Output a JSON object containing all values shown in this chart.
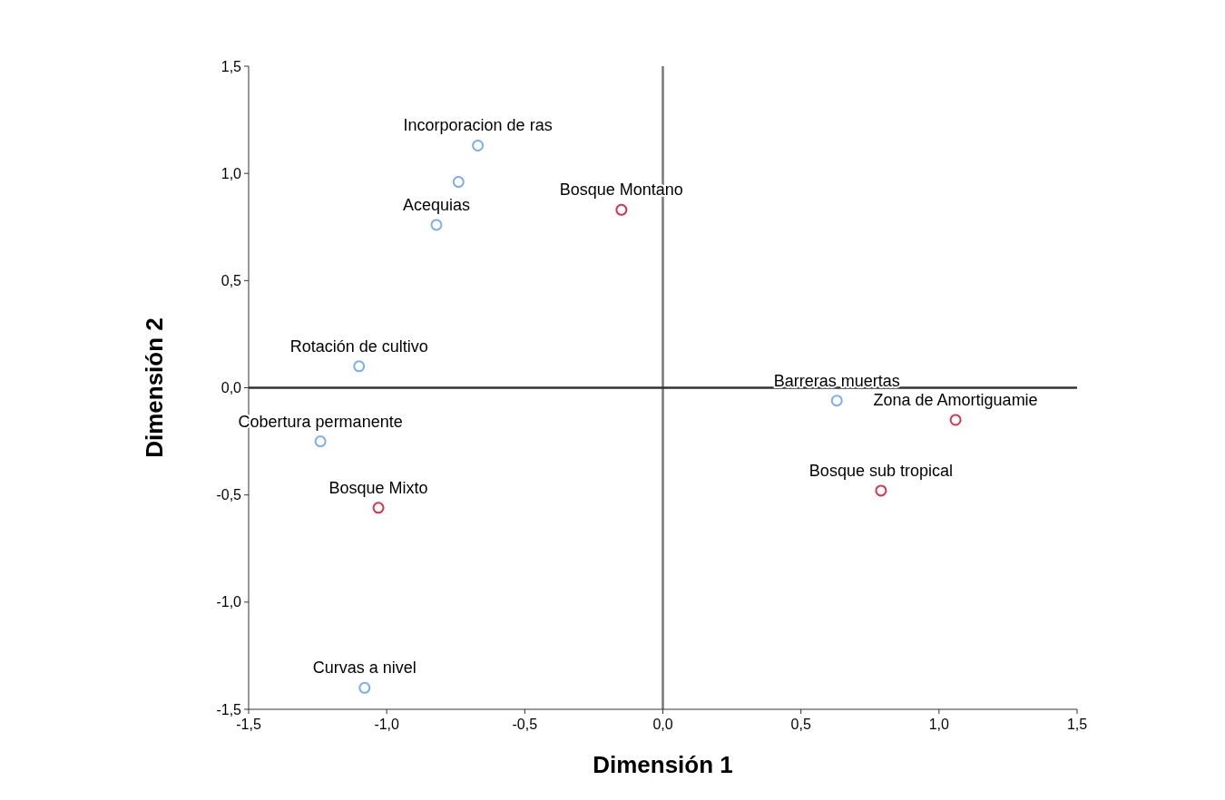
{
  "chart_data": {
    "type": "scatter",
    "xlabel": "Dimensión 1",
    "ylabel": "Dimensión 2",
    "xlim": [
      -1.5,
      1.5
    ],
    "ylim": [
      -1.5,
      1.5
    ],
    "xticks": [
      {
        "value": -1.5,
        "label": "-1,5"
      },
      {
        "value": -1,
        "label": "-1,0"
      },
      {
        "value": -0.5,
        "label": "-0,5"
      },
      {
        "value": 0,
        "label": "0,0"
      },
      {
        "value": 0.5,
        "label": "0,5"
      },
      {
        "value": 1,
        "label": "1,0"
      },
      {
        "value": 1.5,
        "label": "1,5"
      }
    ],
    "yticks": [
      {
        "value": -1.5,
        "label": "-1,5"
      },
      {
        "value": -1,
        "label": "-1,0"
      },
      {
        "value": -0.5,
        "label": "-0,5"
      },
      {
        "value": 0,
        "label": "0,0"
      },
      {
        "value": 0.5,
        "label": "0,5"
      },
      {
        "value": 1,
        "label": "1,0"
      },
      {
        "value": 1.5,
        "label": "1,5"
      }
    ],
    "series": [
      {
        "color": "#7aaef0",
        "x": [
          -0.67,
          -0.74,
          -0.82,
          -1.1,
          -1.24,
          -1.08,
          0.63
        ],
        "values": [
          1.13,
          0.96,
          0.76,
          0.1,
          -0.25,
          -1.4,
          -0.06
        ]
      },
      {
        "color": "#e0304a",
        "x": [
          -0.15,
          -1.03,
          1.06,
          0.79
        ],
        "values": [
          0.83,
          -0.56,
          -0.15,
          -0.48
        ]
      }
    ],
    "marker": "circle",
    "grid": false,
    "ref_lines": [
      {
        "axis": "x",
        "value": 0,
        "color": "#777777"
      },
      {
        "axis": "y",
        "value": 0,
        "color": "#333333"
      }
    ],
    "annotations": [
      {
        "text": "Incorporacion de ras",
        "x": -0.67,
        "y": 1.13
      },
      {
        "text": "Acequias",
        "x": -0.82,
        "y": 0.76
      },
      {
        "text": "Rotación de cultivo",
        "x": -1.1,
        "y": 0.1
      },
      {
        "text": "Cobertura permanente",
        "x": -1.24,
        "y": -0.25
      },
      {
        "text": "Curvas a nivel",
        "x": -1.08,
        "y": -1.4
      },
      {
        "text": "Barreras muertas",
        "x": 0.63,
        "y": -0.06
      },
      {
        "text": "Bosque Montano",
        "x": -0.15,
        "y": 0.83
      },
      {
        "text": "Bosque Mixto",
        "x": -1.03,
        "y": -0.56
      },
      {
        "text": "Zona de Amortiguamie",
        "x": 1.06,
        "y": -0.15
      },
      {
        "text": "Bosque sub tropical",
        "x": 0.79,
        "y": -0.48
      }
    ]
  }
}
